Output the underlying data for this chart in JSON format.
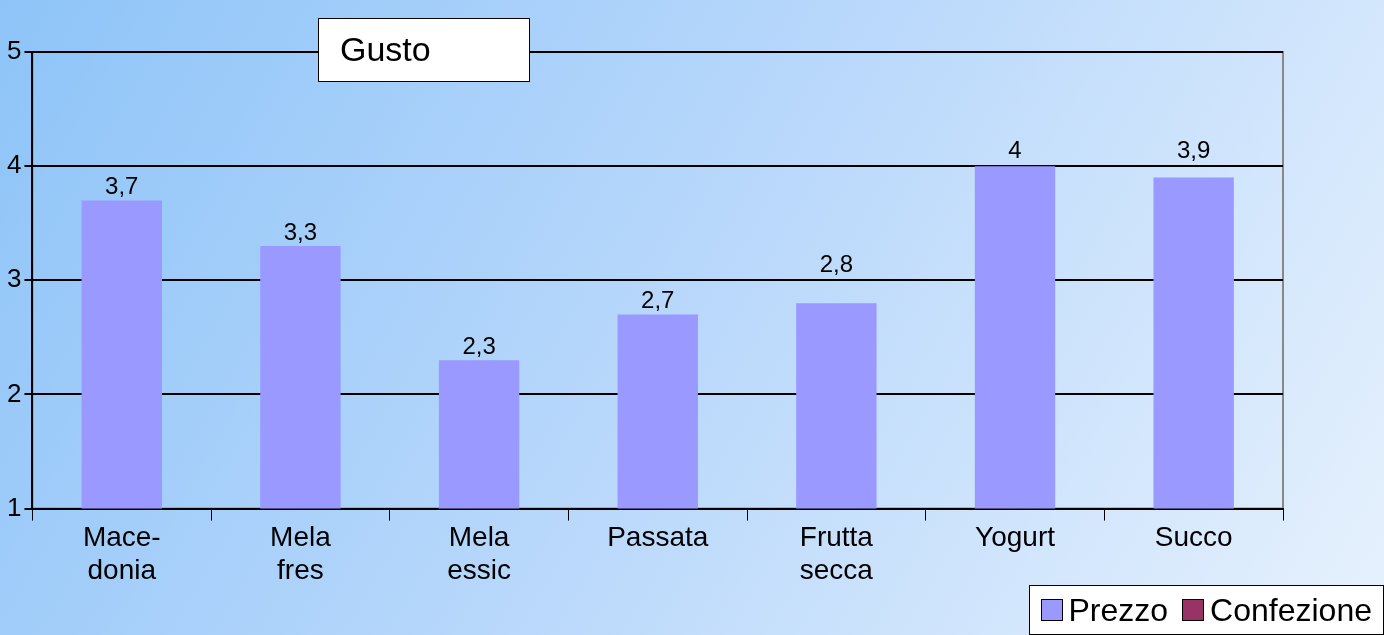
{
  "chart_data": {
    "type": "bar",
    "title": "Gusto",
    "categories": [
      "Mace-\ndonia",
      "Mela\nfres",
      "Mela\nessic",
      "Passata",
      "Frutta\nsecca",
      "Yogurt",
      "Succo"
    ],
    "series": [
      {
        "name": "Prezzo",
        "color": "#9999ff",
        "values": [
          3.7,
          3.3,
          2.3,
          2.7,
          2.8,
          4,
          3.9
        ],
        "value_labels": [
          "3,7",
          "3,3",
          "2,3",
          "2,7",
          "2,8",
          "4",
          "3,9"
        ]
      },
      {
        "name": "Confezione",
        "color": "#993366",
        "values": [
          null,
          null,
          null,
          null,
          null,
          null,
          null
        ]
      }
    ],
    "ylim": [
      1,
      5
    ],
    "yticks": [
      1,
      2,
      3,
      4,
      5
    ],
    "grid": "y",
    "legend": "bottom right"
  }
}
